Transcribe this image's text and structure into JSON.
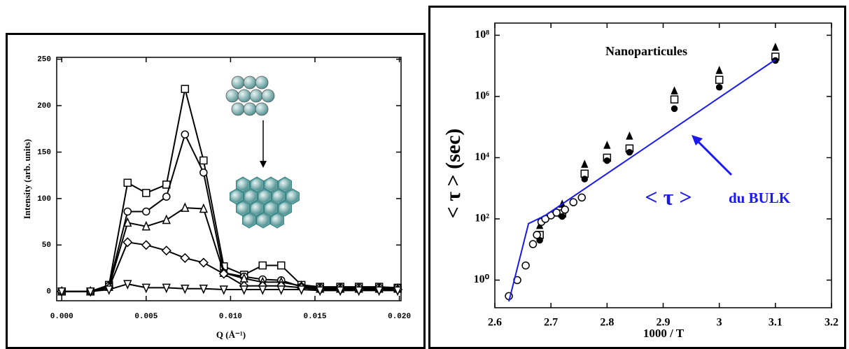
{
  "chart_data": [
    {
      "type": "line",
      "x_label": "Q (Å⁻¹)",
      "y_label": "Intensity (arb. units)",
      "xlim": [
        -0.0003,
        0.0201
      ],
      "ylim": [
        -10,
        252
      ],
      "xticks": [
        {
          "value": 0,
          "label": "0.000"
        },
        {
          "value": 0.005,
          "label": "0.005"
        },
        {
          "value": 0.01,
          "label": "0.010"
        },
        {
          "value": 0.015,
          "label": "0.015"
        },
        {
          "value": 0.02,
          "label": "0.020"
        }
      ],
      "yticks": [
        0,
        50,
        100,
        150,
        200,
        250
      ],
      "x": [
        0.0,
        0.0017,
        0.0028,
        0.0039,
        0.005,
        0.0062,
        0.0073,
        0.0084,
        0.0096,
        0.0108,
        0.0119,
        0.013,
        0.0142,
        0.0153,
        0.0165,
        0.0176,
        0.0188,
        0.0199
      ],
      "series": [
        {
          "marker": "square",
          "filled": false,
          "color": "#000000",
          "values": [
            0,
            0,
            7,
            117,
            106,
            115,
            218,
            141,
            27,
            18,
            28,
            28,
            7,
            5,
            5,
            5,
            5,
            4
          ]
        },
        {
          "marker": "circle",
          "filled": false,
          "color": "#000000",
          "values": [
            0,
            0,
            6,
            86,
            86,
            102,
            169,
            128,
            20,
            16,
            13,
            12,
            5,
            4,
            4,
            4,
            4,
            4
          ]
        },
        {
          "marker": "triangle",
          "filled": false,
          "color": "#000000",
          "values": [
            0,
            0,
            5,
            74,
            70,
            77,
            90,
            89,
            20,
            14,
            10,
            10,
            6,
            3,
            3,
            3,
            3,
            3
          ]
        },
        {
          "marker": "diamond",
          "filled": false,
          "color": "#000000",
          "values": [
            0,
            0,
            4,
            53,
            50,
            44,
            36,
            31,
            19,
            6,
            6,
            6,
            4,
            2,
            2,
            2,
            2,
            2
          ]
        },
        {
          "marker": "triangle-down",
          "filled": false,
          "color": "#000000",
          "values": [
            0,
            0,
            2,
            8,
            4,
            4,
            3,
            3,
            2,
            2,
            2,
            2,
            2,
            1,
            1,
            1,
            1,
            1
          ]
        }
      ]
    },
    {
      "type": "scatter",
      "x_label": "1000 / T",
      "y_label": "< τ > (sec)",
      "annotations": [
        "Nanoparticules",
        "< τ >",
        "du BULK"
      ],
      "xlim": [
        2.6,
        3.2
      ],
      "ylim": [
        0.125,
        250000000
      ],
      "ylog": true,
      "xticks": [
        2.6,
        2.7,
        2.8,
        2.9,
        3,
        3.1,
        3.2
      ],
      "yticks": [
        {
          "value": 1,
          "label": "10⁰"
        },
        {
          "value": 100,
          "label": "10²"
        },
        {
          "value": 10000,
          "label": "10⁴"
        },
        {
          "value": 1000000,
          "label": "10⁶"
        },
        {
          "value": 100000000,
          "label": "10⁸"
        }
      ],
      "series": [
        {
          "marker": "triangle",
          "filled": true,
          "color": "#000000",
          "x": [
            2.68,
            2.72,
            2.76,
            2.8,
            2.84,
            2.92,
            3.0,
            3.1
          ],
          "values": [
            60,
            300,
            6000,
            25000,
            50000,
            1500000,
            7000000,
            40000000
          ]
        },
        {
          "marker": "square",
          "filled": false,
          "color": "#000000",
          "x": [
            2.68,
            2.72,
            2.76,
            2.8,
            2.84,
            2.92,
            3.0,
            3.1
          ],
          "values": [
            30,
            150,
            3000,
            10000,
            20000,
            800000,
            3500000,
            20000000
          ]
        },
        {
          "marker": "circle",
          "filled": true,
          "color": "#000000",
          "x": [
            2.68,
            2.72,
            2.76,
            2.8,
            2.84,
            2.92,
            3.0,
            3.1
          ],
          "values": [
            20,
            120,
            2000,
            8000,
            15000,
            400000,
            2000000,
            15000000
          ]
        },
        {
          "marker": "circle",
          "filled": false,
          "color": "#000000",
          "x": [
            2.625,
            2.64,
            2.655,
            2.668,
            2.675,
            2.683,
            2.69,
            2.7,
            2.71,
            2.725,
            2.74,
            2.755
          ],
          "values": [
            0.3,
            1,
            3,
            15,
            30,
            80,
            100,
            130,
            160,
            200,
            350,
            500
          ]
        },
        {
          "mode": "line",
          "color": "#1a1aee",
          "x": [
            2.625,
            2.66,
            2.69,
            3.1
          ],
          "values": [
            0.2,
            70,
            130,
            16000000
          ]
        }
      ]
    }
  ]
}
